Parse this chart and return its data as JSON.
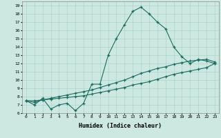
{
  "title": "",
  "xlabel": "Humidex (Indice chaleur)",
  "ylabel": "",
  "bg_color": "#cce8e0",
  "grid_color": "#aad4cc",
  "line_color": "#1a6b60",
  "xlim": [
    -0.5,
    23.5
  ],
  "ylim": [
    6,
    19.5
  ],
  "xtick_labels": [
    "0",
    "1",
    "2",
    "3",
    "4",
    "5",
    "6",
    "7",
    "8",
    "9",
    "10",
    "11",
    "12",
    "13",
    "14",
    "15",
    "16",
    "17",
    "18",
    "19",
    "20",
    "21",
    "22",
    "23"
  ],
  "ytick_labels": [
    "6",
    "7",
    "8",
    "9",
    "10",
    "11",
    "12",
    "13",
    "14",
    "15",
    "16",
    "17",
    "18",
    "19"
  ],
  "line1_x": [
    0,
    1,
    2,
    3,
    4,
    5,
    6,
    7,
    8,
    9,
    10,
    11,
    12,
    13,
    14,
    15,
    16,
    17,
    18,
    19,
    20,
    21,
    22,
    23
  ],
  "line1_y": [
    7.5,
    7.0,
    7.8,
    6.5,
    7.0,
    7.2,
    6.3,
    7.2,
    9.5,
    9.5,
    13.0,
    15.0,
    16.7,
    18.3,
    18.8,
    18.0,
    17.0,
    16.2,
    14.0,
    12.8,
    12.0,
    12.5,
    12.3,
    12.0
  ],
  "line2_x": [
    0,
    1,
    2,
    3,
    4,
    5,
    6,
    7,
    8,
    9,
    10,
    11,
    12,
    13,
    14,
    15,
    16,
    17,
    18,
    19,
    20,
    21,
    22,
    23
  ],
  "line2_y": [
    7.5,
    7.3,
    7.6,
    7.8,
    8.0,
    8.2,
    8.4,
    8.6,
    8.8,
    9.1,
    9.4,
    9.7,
    10.0,
    10.4,
    10.8,
    11.1,
    11.4,
    11.6,
    11.9,
    12.1,
    12.3,
    12.4,
    12.5,
    12.2
  ],
  "line3_x": [
    0,
    1,
    2,
    3,
    4,
    5,
    6,
    7,
    8,
    9,
    10,
    11,
    12,
    13,
    14,
    15,
    16,
    17,
    18,
    19,
    20,
    21,
    22,
    23
  ],
  "line3_y": [
    7.5,
    7.5,
    7.6,
    7.7,
    7.8,
    7.9,
    8.0,
    8.1,
    8.3,
    8.5,
    8.7,
    8.9,
    9.1,
    9.4,
    9.6,
    9.8,
    10.1,
    10.4,
    10.7,
    10.9,
    11.1,
    11.3,
    11.5,
    12.0
  ]
}
